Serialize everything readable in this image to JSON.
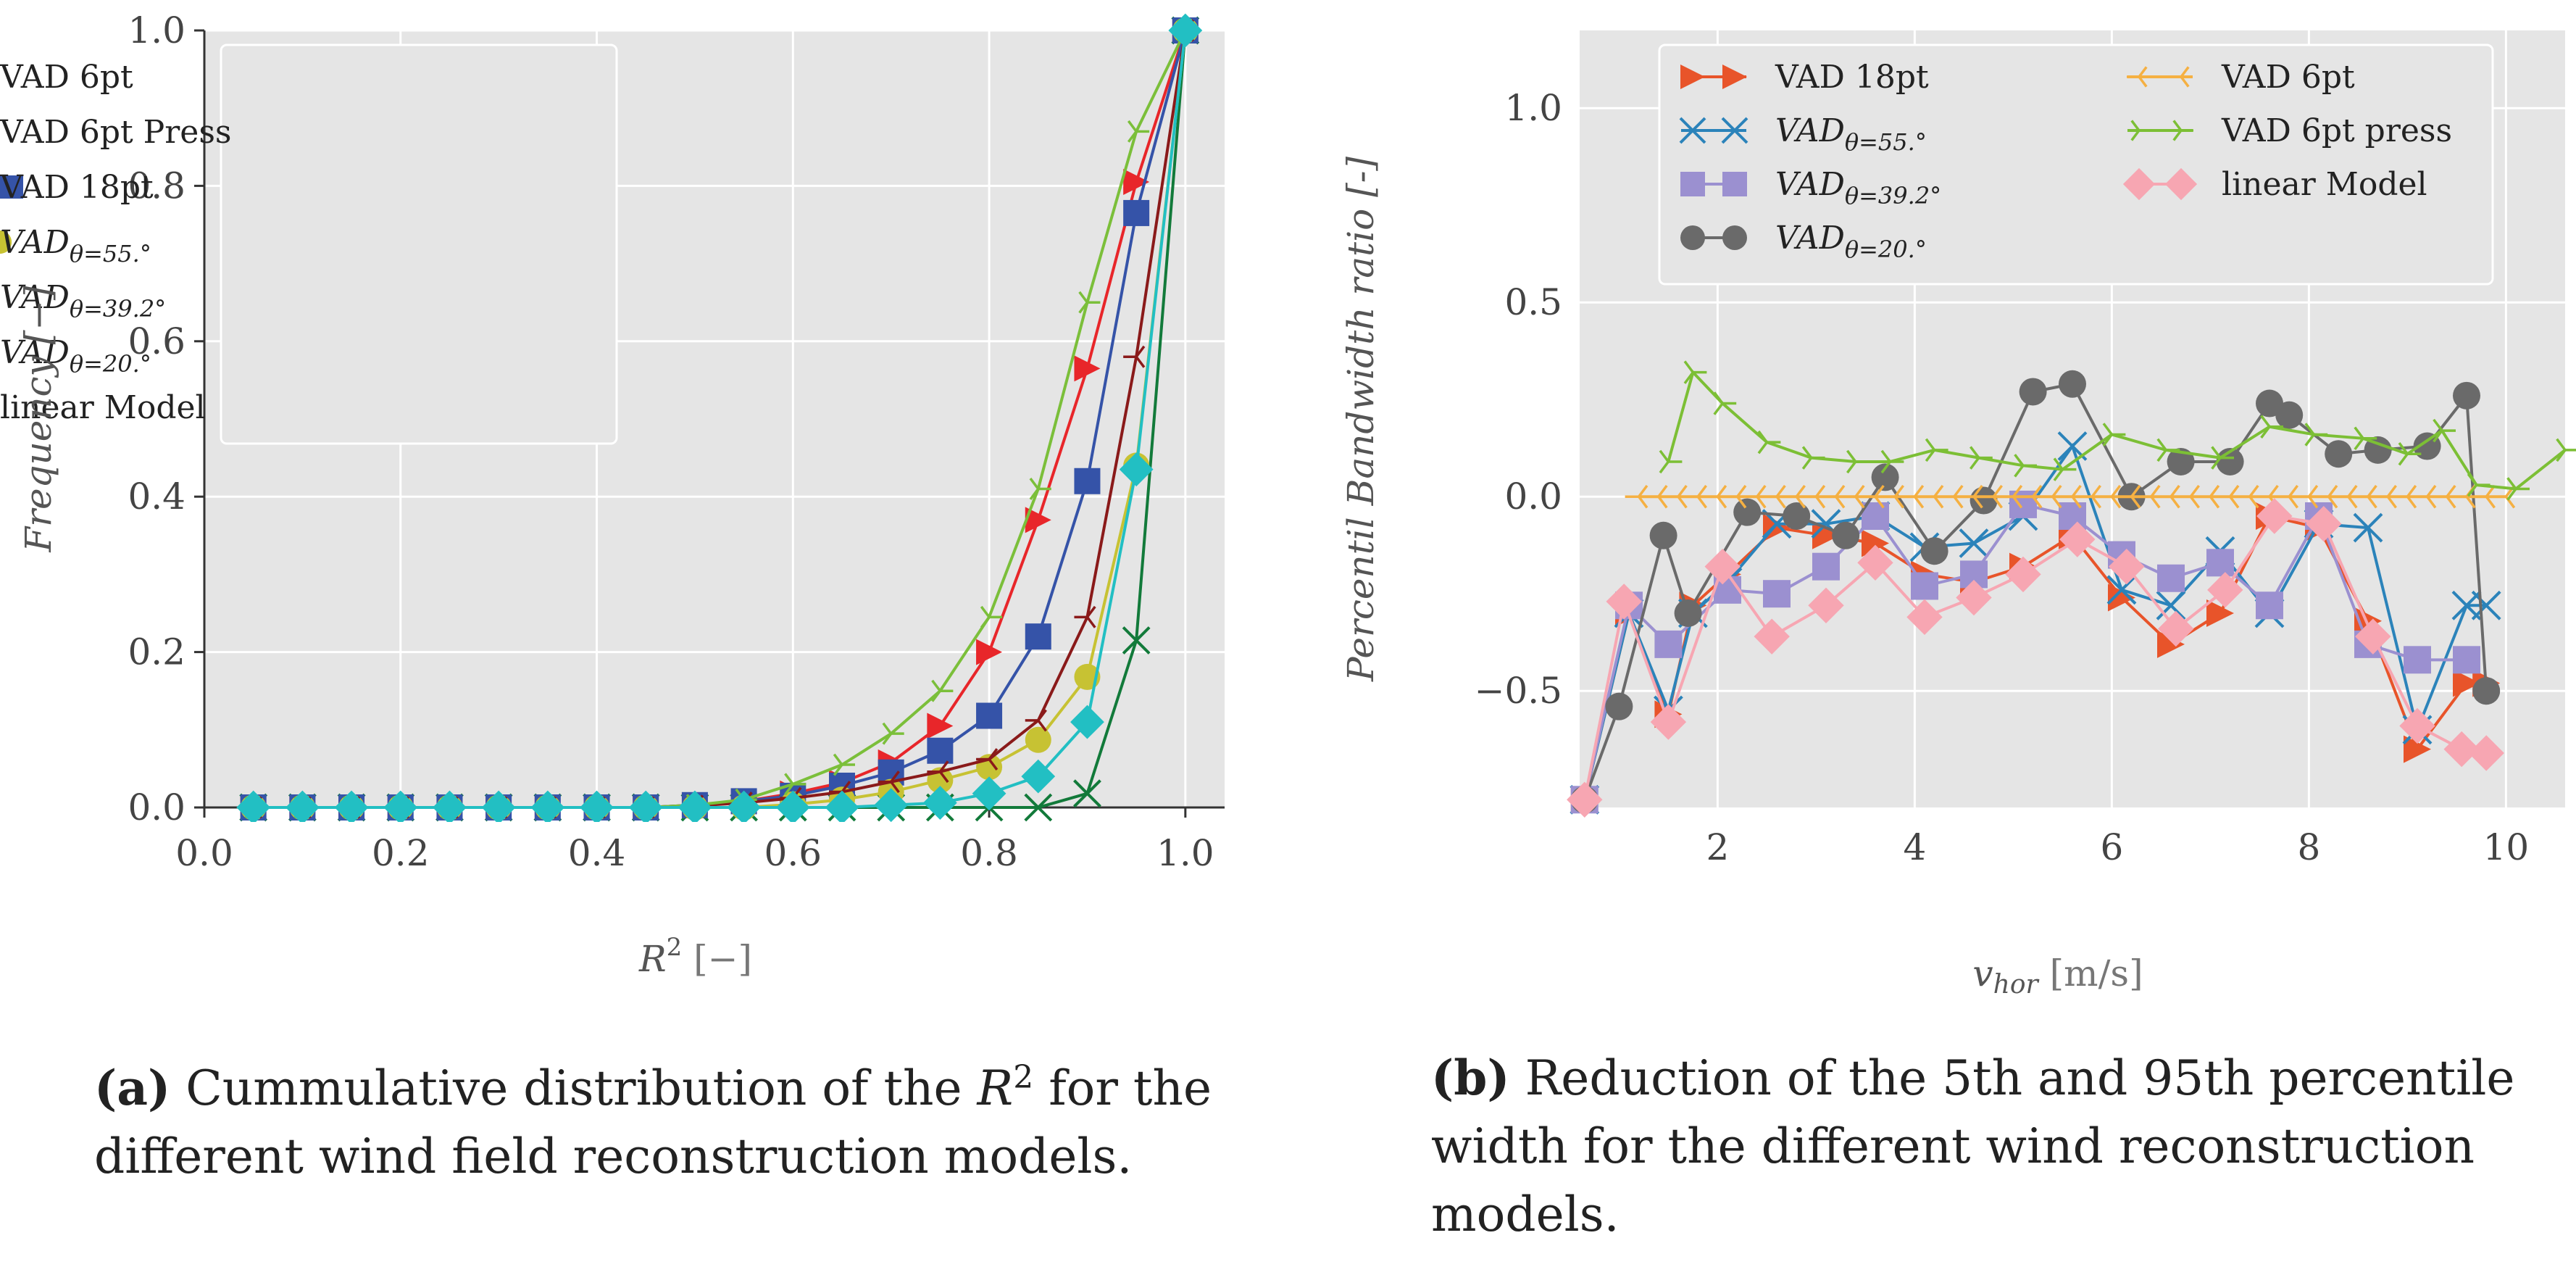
{
  "chart_data": [
    {
      "id": "a",
      "type": "line",
      "xlabel": "R² [−]",
      "ylabel": "Frequency [−]",
      "xlim": [
        0.0,
        1.04
      ],
      "ylim": [
        0.0,
        1.0
      ],
      "xticks": [
        "0.0",
        "0.2",
        "0.4",
        "0.6",
        "0.8",
        "1.0"
      ],
      "yticks": [
        "0.0",
        "0.2",
        "0.4",
        "0.6",
        "0.8",
        "1.0"
      ],
      "x": [
        0.05,
        0.1,
        0.15,
        0.2,
        0.25,
        0.3,
        0.35,
        0.4,
        0.45,
        0.5,
        0.55,
        0.6,
        0.65,
        0.7,
        0.75,
        0.8,
        0.85,
        0.9,
        0.95,
        1.0
      ],
      "series": [
        {
          "name": "VAD 6pt",
          "color": "#e8262a",
          "marker": "triangle-right",
          "values": [
            0,
            0,
            0,
            0,
            0,
            0,
            0,
            0,
            0,
            0.003,
            0.008,
            0.018,
            0.032,
            0.058,
            0.105,
            0.2,
            0.37,
            0.565,
            0.805,
            1.0
          ]
        },
        {
          "name": "VAD 6pt Press",
          "color": "#127a3a",
          "marker": "x",
          "values": [
            0,
            0,
            0,
            0,
            0,
            0,
            0,
            0,
            0,
            0,
            0,
            0,
            0,
            0,
            0,
            0,
            0,
            0.018,
            0.215,
            1.0
          ]
        },
        {
          "name": "VAD 18pt",
          "color": "#3553a8",
          "marker": "square",
          "values": [
            0,
            0,
            0,
            0,
            0,
            0,
            0,
            0,
            0,
            0.003,
            0.008,
            0.015,
            0.028,
            0.045,
            0.073,
            0.118,
            0.22,
            0.42,
            0.765,
            1.0
          ]
        },
        {
          "name": "VAD_{θ=55.°}",
          "color": "#c7c233",
          "marker": "circle",
          "values": [
            0,
            0,
            0,
            0,
            0,
            0,
            0,
            0,
            0,
            0,
            0,
            0.004,
            0.01,
            0.02,
            0.035,
            0.052,
            0.087,
            0.168,
            0.44,
            1.0
          ]
        },
        {
          "name": "VAD_{θ=39.2°}",
          "color": "#8a1a1a",
          "marker": "tri-left",
          "values": [
            0,
            0,
            0,
            0,
            0,
            0,
            0,
            0,
            0,
            0.002,
            0.006,
            0.012,
            0.02,
            0.033,
            0.046,
            0.062,
            0.112,
            0.245,
            0.58,
            1.0
          ]
        },
        {
          "name": "VAD_{θ=20.°}",
          "color": "#7bbf3a",
          "marker": "tri-right",
          "values": [
            0,
            0,
            0,
            0,
            0,
            0,
            0,
            0,
            0,
            0.003,
            0.01,
            0.03,
            0.055,
            0.095,
            0.15,
            0.245,
            0.41,
            0.65,
            0.87,
            1.0
          ]
        },
        {
          "name": "linear Model",
          "color": "#22bfc3",
          "marker": "diamond",
          "values": [
            0,
            0,
            0,
            0,
            0,
            0,
            0,
            0,
            0,
            0,
            0,
            0,
            0,
            0.003,
            0.006,
            0.018,
            0.04,
            0.11,
            0.435,
            1.0
          ]
        }
      ],
      "legend": "top-left"
    },
    {
      "id": "b",
      "type": "line",
      "xlabel": "v_hor [m/s]",
      "ylabel": "Percentil Bandwidth ratio [-]",
      "xlim": [
        0.6,
        10.6
      ],
      "ylim": [
        -0.8,
        1.2
      ],
      "xticks": [
        "2",
        "4",
        "6",
        "8",
        "10"
      ],
      "yticks": [
        "−0.5",
        "0.0",
        "0.5",
        "1.0"
      ],
      "series": [
        {
          "name": "VAD 18pt",
          "color": "#e8542a",
          "marker": "triangle-right",
          "x": [
            0.65,
            1.1,
            1.5,
            1.75,
            2.1,
            2.6,
            3.1,
            3.6,
            4.1,
            4.6,
            5.1,
            5.6,
            6.1,
            6.6,
            7.1,
            7.6,
            8.1,
            8.6,
            9.1,
            9.6,
            9.8
          ],
          "y": [
            -0.78,
            -0.3,
            -0.56,
            -0.28,
            -0.2,
            -0.08,
            -0.1,
            -0.12,
            -0.2,
            -0.22,
            -0.18,
            -0.1,
            -0.26,
            -0.38,
            -0.3,
            -0.05,
            -0.08,
            -0.32,
            -0.65,
            -0.48,
            -0.48
          ]
        },
        {
          "name": "VAD_{θ=55.°}",
          "color": "#2b83ba",
          "marker": "x",
          "x": [
            0.65,
            1.1,
            1.5,
            1.75,
            2.1,
            2.6,
            3.1,
            3.6,
            4.1,
            4.6,
            5.1,
            5.6,
            6.1,
            6.6,
            7.1,
            7.6,
            8.1,
            8.6,
            9.1,
            9.6,
            9.8
          ],
          "y": [
            -0.78,
            -0.3,
            -0.55,
            -0.3,
            -0.22,
            -0.07,
            -0.07,
            -0.05,
            -0.13,
            -0.12,
            -0.05,
            0.13,
            -0.24,
            -0.28,
            -0.14,
            -0.3,
            -0.07,
            -0.08,
            -0.6,
            -0.28,
            -0.28
          ]
        },
        {
          "name": "VAD_{θ=39.2°}",
          "color": "#9b90d0",
          "marker": "square",
          "x": [
            0.65,
            1.1,
            1.5,
            2.1,
            2.6,
            3.1,
            3.6,
            4.1,
            4.6,
            5.1,
            5.6,
            6.1,
            6.6,
            7.1,
            7.6,
            8.1,
            8.6,
            9.1,
            9.6
          ],
          "y": [
            -0.78,
            -0.28,
            -0.38,
            -0.24,
            -0.25,
            -0.18,
            -0.05,
            -0.23,
            -0.2,
            -0.02,
            -0.05,
            -0.15,
            -0.21,
            -0.17,
            -0.28,
            -0.05,
            -0.38,
            -0.42,
            -0.42
          ]
        },
        {
          "name": "VAD_{θ=20.°}",
          "color": "#6a6a6a",
          "marker": "circle",
          "x": [
            0.65,
            1.0,
            1.45,
            1.7,
            2.3,
            2.8,
            3.3,
            3.7,
            4.2,
            4.7,
            5.2,
            5.6,
            6.2,
            6.7,
            7.2,
            7.6,
            7.8,
            8.3,
            8.7,
            9.2,
            9.6,
            9.8
          ],
          "y": [
            -0.78,
            -0.54,
            -0.1,
            -0.3,
            -0.04,
            -0.05,
            -0.1,
            0.05,
            -0.14,
            -0.01,
            0.27,
            0.29,
            0.0,
            0.09,
            0.09,
            0.24,
            0.21,
            0.11,
            0.12,
            0.13,
            0.26,
            -0.5
          ]
        },
        {
          "name": "VAD 6pt",
          "color": "#f5b042",
          "marker": "tri-left",
          "x": [
            1.2,
            1.4,
            1.6,
            1.8,
            2.0,
            2.2,
            2.4,
            2.6,
            2.8,
            3.0,
            3.2,
            3.4,
            3.6,
            3.8,
            4.0,
            4.2,
            4.4,
            4.6,
            4.8,
            5.0,
            5.2,
            5.4,
            5.6,
            5.8,
            6.0,
            6.2,
            6.4,
            6.6,
            6.8,
            7.0,
            7.2,
            7.4,
            7.6,
            7.8,
            8.0,
            8.2,
            8.4,
            8.6,
            8.8,
            9.0,
            9.2,
            9.4,
            9.6,
            9.8,
            10.0
          ],
          "y": [
            0,
            0,
            0,
            0,
            0,
            0,
            0,
            0,
            0,
            0,
            0,
            0,
            0,
            0,
            0,
            0,
            0,
            0,
            0,
            0,
            0,
            0,
            0,
            0,
            0,
            0,
            0,
            0,
            0,
            0,
            0,
            0,
            0,
            0,
            0,
            0,
            0,
            0,
            0,
            0,
            0,
            0,
            0,
            0,
            0
          ]
        },
        {
          "name": "VAD 6pt press",
          "color": "#7cbf35",
          "marker": "tri-right",
          "x": [
            1.5,
            1.75,
            2.05,
            2.5,
            2.95,
            3.4,
            3.75,
            4.2,
            4.65,
            5.1,
            5.5,
            6.0,
            6.55,
            7.1,
            7.6,
            8.05,
            8.55,
            9.0,
            9.35,
            9.7,
            10.1,
            10.6
          ],
          "y": [
            0.09,
            0.32,
            0.24,
            0.14,
            0.1,
            0.09,
            0.09,
            0.12,
            0.1,
            0.08,
            0.07,
            0.16,
            0.12,
            0.1,
            0.18,
            0.16,
            0.15,
            0.11,
            0.17,
            0.03,
            0.02,
            0.12
          ]
        },
        {
          "name": "linear Model",
          "color": "#f7a6b2",
          "marker": "diamond",
          "x": [
            0.65,
            1.05,
            1.5,
            2.05,
            2.55,
            3.1,
            3.6,
            4.1,
            4.6,
            5.1,
            5.65,
            6.15,
            6.65,
            7.15,
            7.65,
            8.15,
            8.65,
            9.1,
            9.55,
            9.8
          ],
          "y": [
            -0.78,
            -0.27,
            -0.58,
            -0.18,
            -0.36,
            -0.28,
            -0.17,
            -0.31,
            -0.26,
            -0.2,
            -0.11,
            -0.18,
            -0.34,
            -0.24,
            -0.05,
            -0.07,
            -0.36,
            -0.59,
            -0.65,
            -0.66
          ]
        }
      ],
      "legend": "top"
    }
  ],
  "captions": {
    "a": {
      "tag": "(a)",
      "line1_pre": " Cummulative distribution of the ",
      "r": "R",
      "sup": "2",
      "line1_post": " for the",
      "line2": "different wind field reconstruction models."
    },
    "b": {
      "tag": "(b)",
      "line1": " Reduction of the 5th and 95th percentile",
      "line2": "width for the different wind reconstruction",
      "line3": "models."
    }
  }
}
